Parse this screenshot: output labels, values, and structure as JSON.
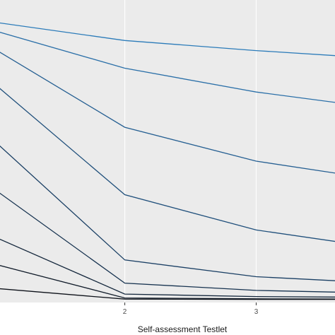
{
  "chart_data": {
    "type": "line",
    "title": "",
    "xlabel": "Self-assessment Testlet",
    "ylabel": "",
    "xlim": [
      1.05,
      3.6
    ],
    "ylim": [
      0,
      1
    ],
    "x_ticks": [
      2,
      3
    ],
    "grid": true,
    "legend": "none",
    "x": [
      1,
      2,
      3,
      4
    ],
    "series": [
      {
        "color": "#2b7bb9",
        "values": [
          0.992,
          0.926,
          0.89,
          0.86
        ]
      },
      {
        "color": "#2a6fa8",
        "values": [
          0.962,
          0.827,
          0.742,
          0.68
        ]
      },
      {
        "color": "#255f92",
        "values": [
          0.898,
          0.616,
          0.495,
          0.424
        ]
      },
      {
        "color": "#1f4f7b",
        "values": [
          0.774,
          0.375,
          0.249,
          0.181
        ]
      },
      {
        "color": "#1a3f64",
        "values": [
          0.57,
          0.142,
          0.082,
          0.058
        ]
      },
      {
        "color": "#16324f",
        "values": [
          0.397,
          0.059,
          0.033,
          0.023
        ]
      },
      {
        "color": "#13263b",
        "values": [
          0.226,
          0.02,
          0.011,
          0.008
        ]
      },
      {
        "color": "#101b29",
        "values": [
          0.128,
          0.006,
          0.003,
          0.002
        ]
      },
      {
        "color": "#0d1119",
        "values": [
          0.041,
          0.002,
          0.001,
          0.001
        ]
      }
    ]
  }
}
